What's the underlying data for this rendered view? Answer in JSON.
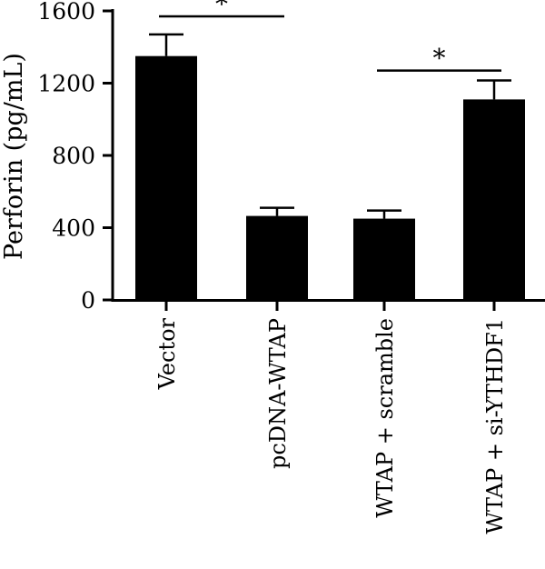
{
  "chart_data": {
    "type": "bar",
    "categories": [
      "Vector",
      "pcDNA-WTAP",
      "WTAP + scramble",
      "WTAP + si-YTHDF1"
    ],
    "values": [
      1350,
      465,
      450,
      1110
    ],
    "errors": [
      120,
      45,
      45,
      105
    ],
    "ylabel": "Perforin (pg/mL)",
    "xlabel": "",
    "ylim": [
      0,
      1600
    ],
    "yticks": [
      0,
      400,
      800,
      1200,
      1600
    ],
    "color": "#000000",
    "significance": [
      {
        "from": 0,
        "to": 1,
        "label": "*",
        "level": 1570
      },
      {
        "from": 2,
        "to": 3,
        "label": "*",
        "level": 1270
      }
    ]
  }
}
